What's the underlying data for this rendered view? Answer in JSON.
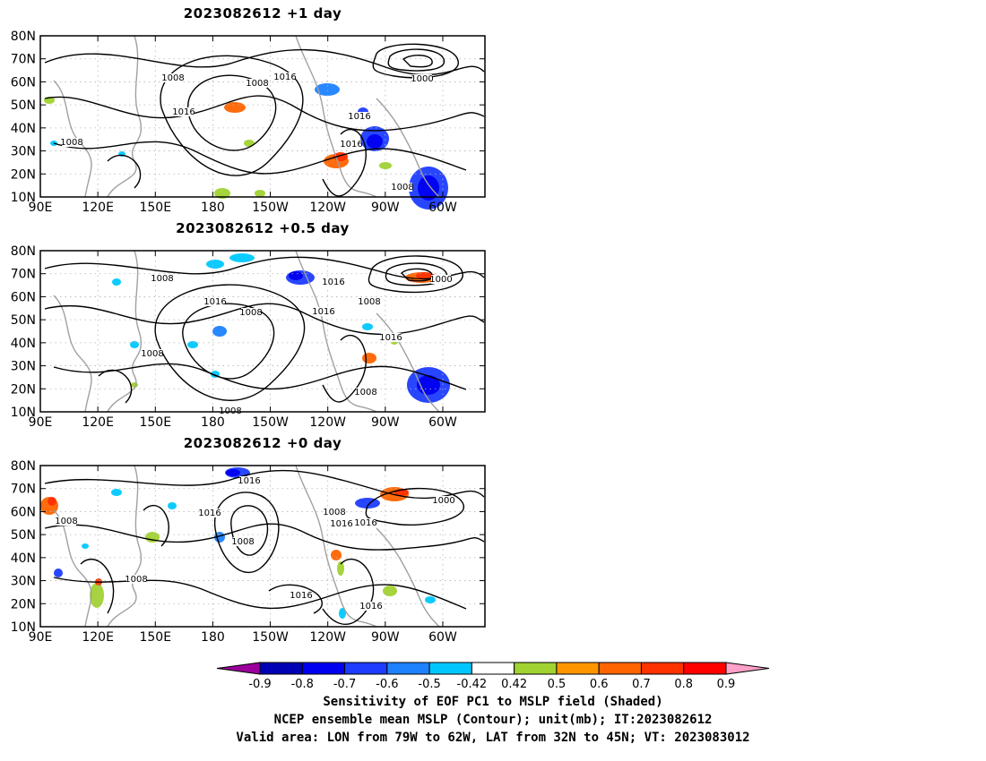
{
  "panels": [
    {
      "title": "2023082612 +1 day",
      "contour_labels": [
        "1008",
        "1008",
        "1016",
        "1008",
        "1016",
        "1000",
        "1016",
        "1016",
        "1008"
      ],
      "high_lows": []
    },
    {
      "title": "2023082612 +0.5 day",
      "contour_labels": [
        "1008",
        "1016",
        "1008",
        "1016",
        "1016",
        "1000",
        "1008",
        "1016",
        "1008",
        "1008",
        "1008"
      ]
    },
    {
      "title": "2023082612 +0 day",
      "contour_labels": [
        "1008",
        "1016",
        "1016",
        "1008",
        "1008",
        "1016",
        "1000",
        "1016",
        "1008",
        "1016",
        "1016"
      ]
    }
  ],
  "axes": {
    "lat_ticks": [
      "80N",
      "70N",
      "60N",
      "50N",
      "40N",
      "30N",
      "20N",
      "10N"
    ],
    "lon_ticks": [
      "90E",
      "120E",
      "150E",
      "180",
      "150W",
      "120W",
      "90W",
      "60W"
    ],
    "lat_range": [
      10,
      80
    ],
    "lon_range_east": [
      90,
      322
    ]
  },
  "colorbar": {
    "ticks": [
      "-0.9",
      "-0.8",
      "-0.7",
      "-0.6",
      "-0.5",
      "-0.42",
      "0.42",
      "0.5",
      "0.6",
      "0.7",
      "0.8",
      "0.9"
    ],
    "colors": [
      "#9b009b",
      "#0000b4",
      "#0000f0",
      "#1e3cff",
      "#1e82ff",
      "#00c8ff",
      "#ffffff",
      "#a0d232",
      "#ff9600",
      "#ff6400",
      "#ff3200",
      "#ff0000",
      "#ffa0c8"
    ]
  },
  "colors": {
    "contour": "#000000",
    "coastline": "#a0a0a0",
    "grid": "#b4b4b4"
  },
  "caption": {
    "line1": "Sensitivity of EOF PC1 to MSLP field (Shaded)",
    "line2": "NCEP ensemble mean MSLP (Contour); unit(mb); IT:2023082612",
    "line3": "Valid area: LON from 79W to 62W, LAT from 32N to 45N; VT: 2023083012"
  }
}
